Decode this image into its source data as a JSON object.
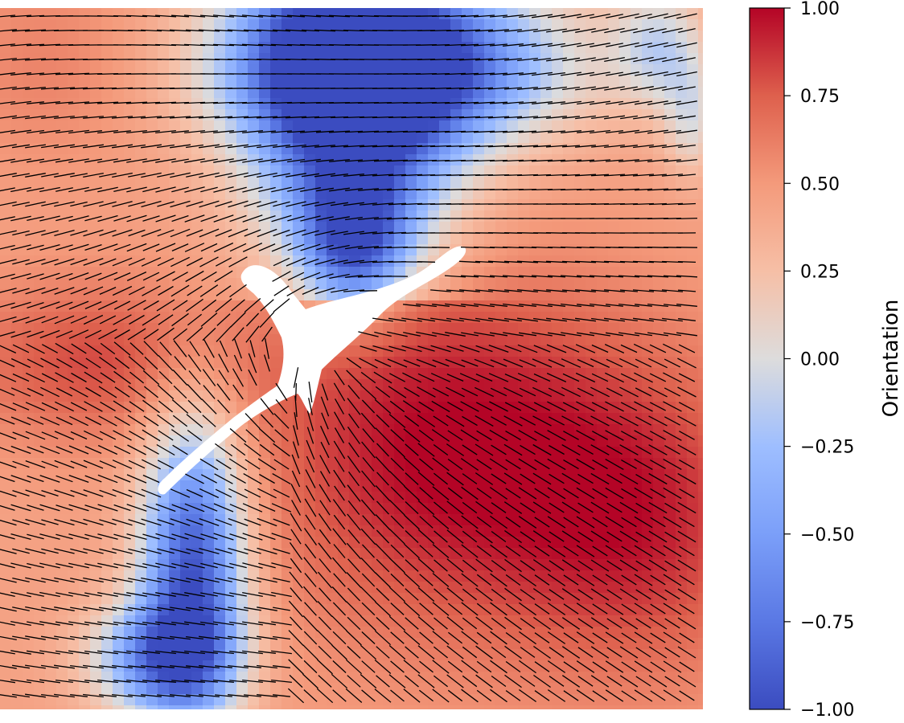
{
  "chart_data": {
    "type": "heatmap",
    "title": "",
    "xlabel": "",
    "ylabel": "",
    "overlay": "nematic director field (headless line segments)",
    "colormap": "coolwarm",
    "colors": {
      "low": "#3b4cc0",
      "mid": "#dddddd",
      "high": "#b40426",
      "overlay_lines": "#000000",
      "defect_region": "#ffffff"
    },
    "colorbar": {
      "label": "Orientation",
      "vmin": -1.0,
      "vmax": 1.0,
      "ticks": [
        1.0,
        0.75,
        0.5,
        0.25,
        0.0,
        -0.25,
        -0.5,
        -0.75,
        -1.0
      ],
      "tick_labels": [
        "1.00",
        "0.75",
        "0.50",
        "0.25",
        "0.00",
        "−0.25",
        "−0.50",
        "−0.75",
        "−1.00"
      ],
      "placement": "right"
    },
    "axes_visible": false,
    "grid": false
  }
}
